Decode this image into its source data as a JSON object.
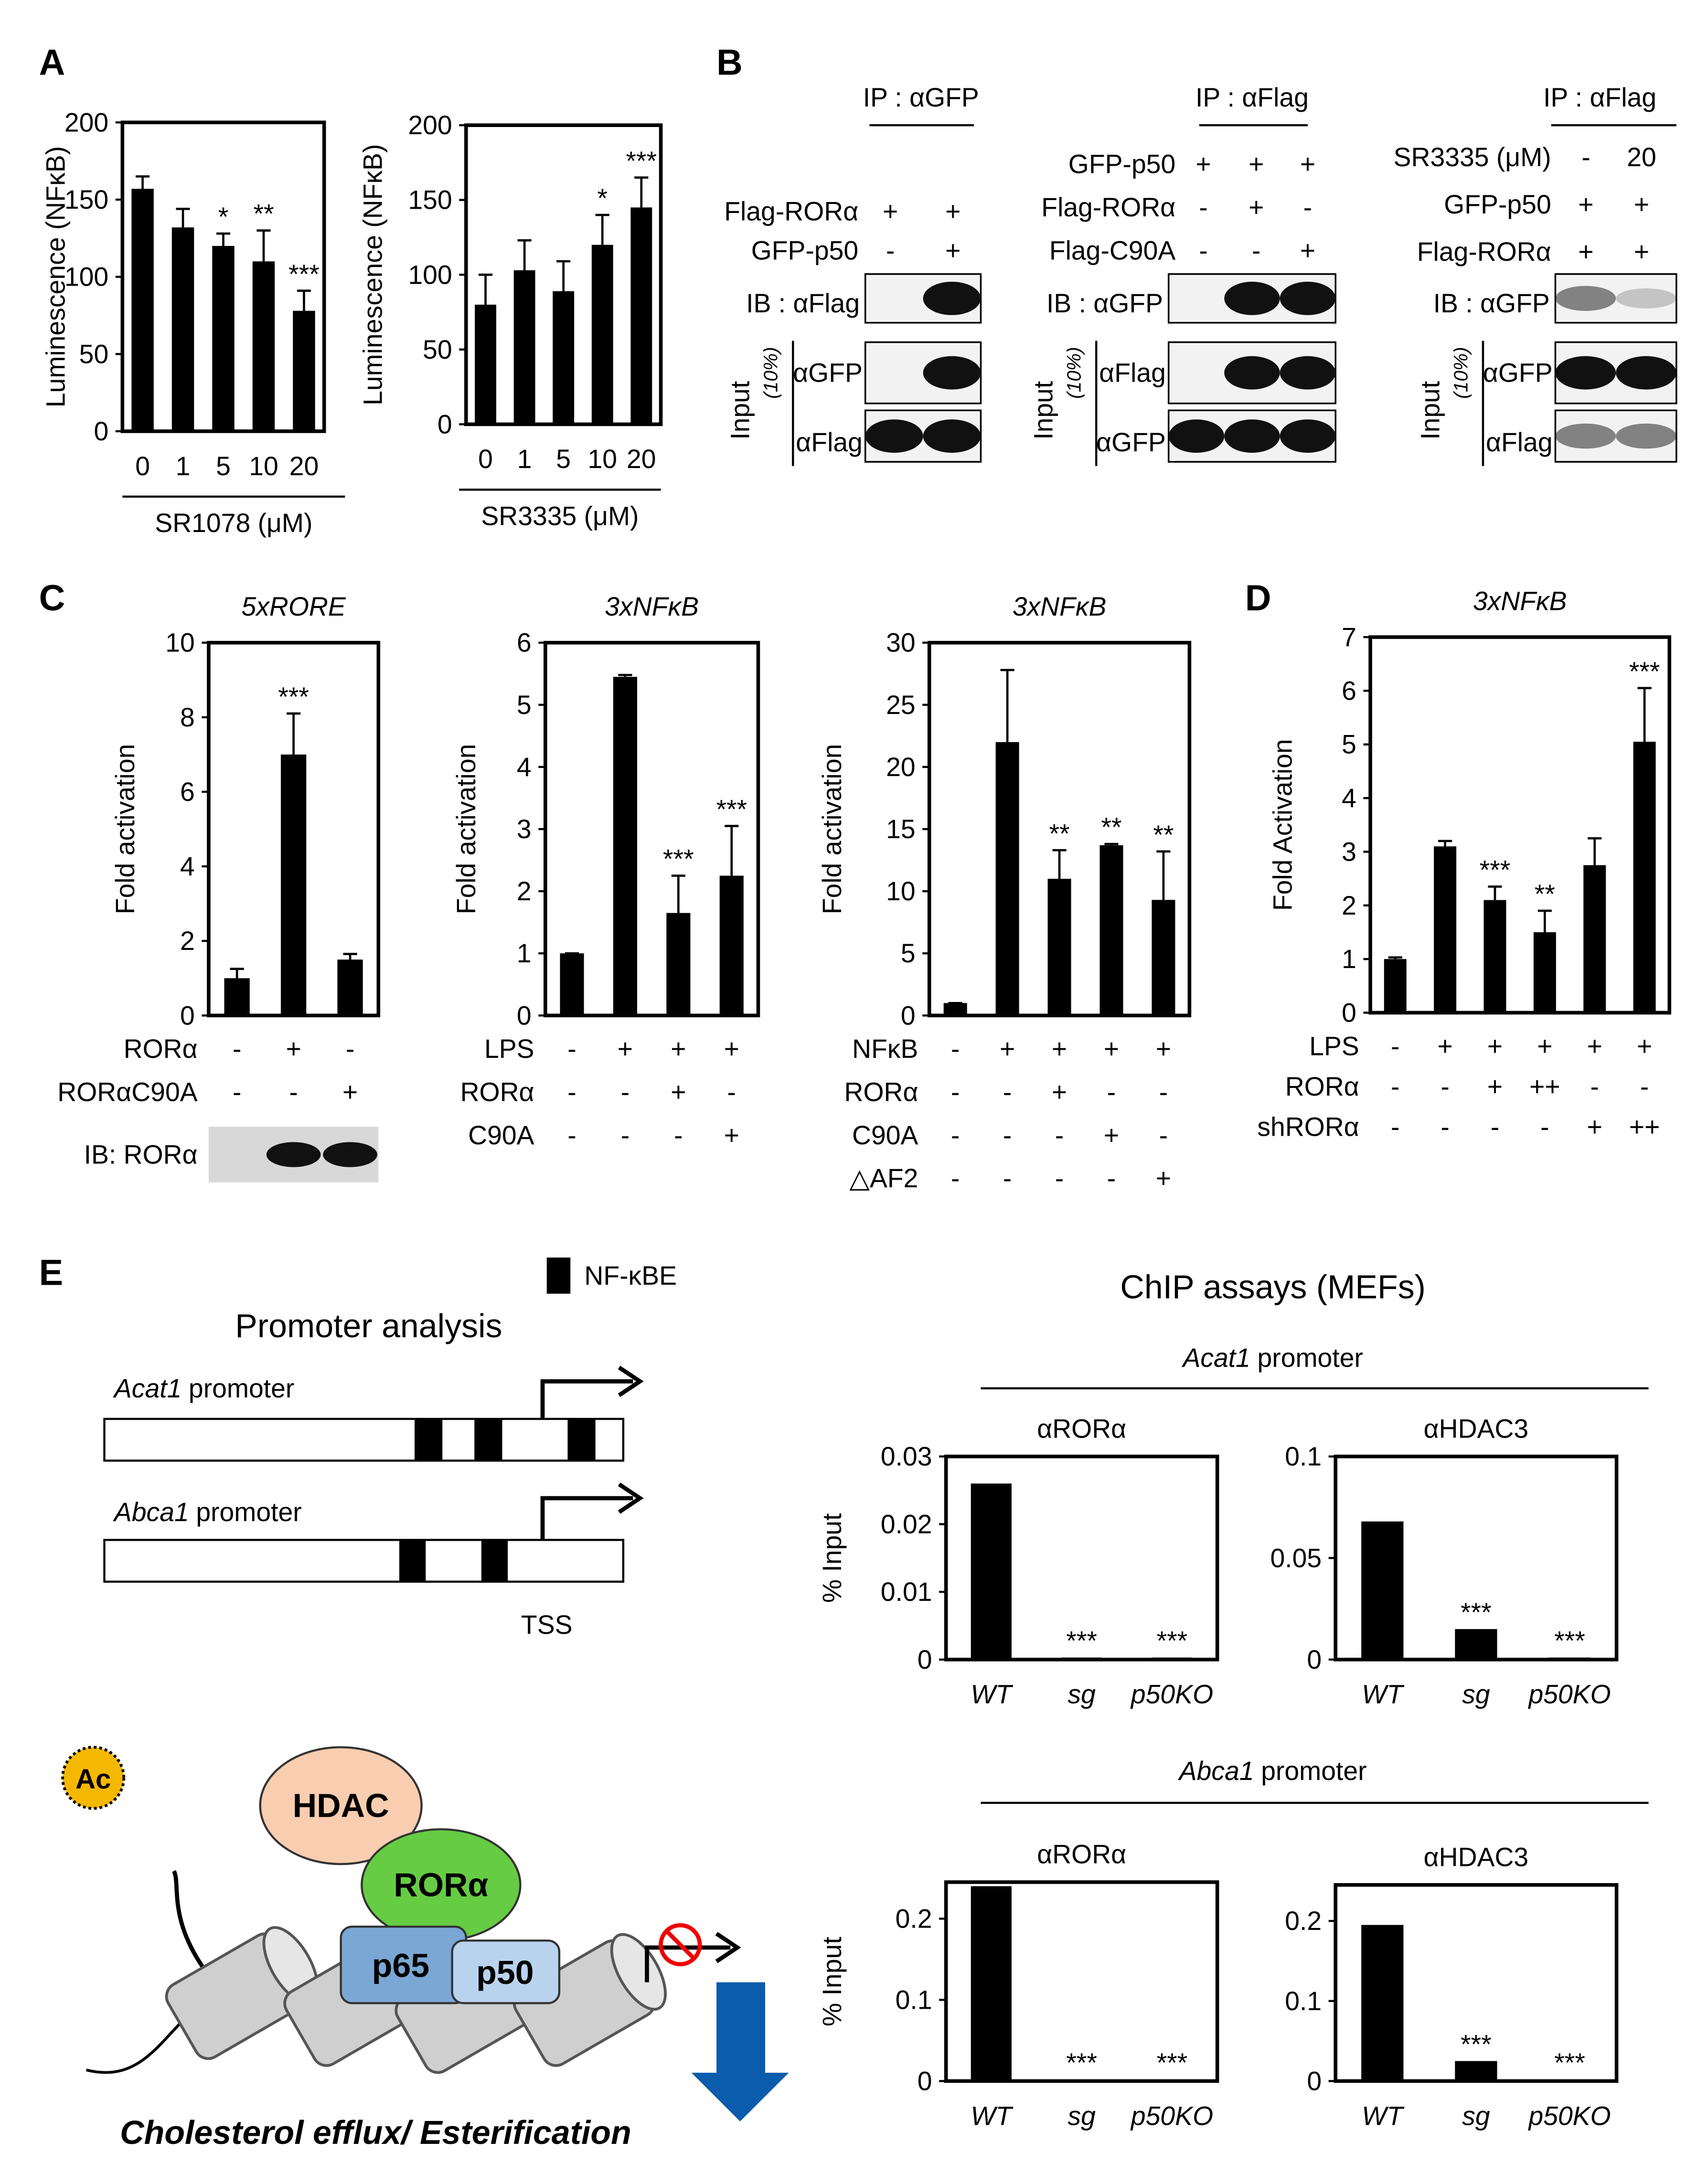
{
  "panel_labels": [
    "A",
    "B",
    "C",
    "D",
    "E"
  ],
  "chart_data": [
    {
      "type": "bar",
      "y_label": "Luminescence (NFκB)",
      "x_label": "SR1078 (μM)",
      "categories": [
        "0",
        "1",
        "5",
        "10",
        "20"
      ],
      "values": [
        157,
        132,
        120,
        110,
        78
      ],
      "errors": [
        8,
        12,
        8,
        20,
        13
      ],
      "significance": [
        null,
        null,
        "*",
        "**",
        "***"
      ],
      "ylim": [
        0,
        200
      ],
      "yticks": [
        0,
        50,
        100,
        150,
        200
      ],
      "color": "#000000"
    },
    {
      "type": "bar",
      "y_label": "Luminescence (NFκB)",
      "x_label": "SR3335 (μM)",
      "categories": [
        "0",
        "1",
        "5",
        "10",
        "20"
      ],
      "values": [
        80,
        103,
        89,
        120,
        145
      ],
      "errors": [
        20,
        20,
        20,
        20,
        20
      ],
      "significance": [
        null,
        null,
        null,
        "*",
        "***"
      ],
      "ylim": [
        0,
        200
      ],
      "yticks": [
        0,
        50,
        100,
        150,
        200
      ],
      "color": "#000000"
    },
    {
      "type": "bar",
      "title": "5xRORE",
      "y_label": "Fold activation",
      "values": [
        1,
        7,
        1.5
      ],
      "errors": [
        0.25,
        1.1,
        0.15
      ],
      "significance": [
        null,
        "***",
        null
      ],
      "ylim": [
        0,
        10
      ],
      "yticks": [
        0,
        2,
        4,
        6,
        8,
        10
      ],
      "color": "#000000",
      "conditions": [
        {
          "name": "RORα",
          "marks": [
            "-",
            "+",
            "-"
          ]
        },
        {
          "name": "RORαC90A",
          "marks": [
            "-",
            "-",
            "+"
          ]
        }
      ],
      "blot_label": "IB: RORα"
    },
    {
      "type": "bar",
      "title": "3xNFκB",
      "y_label": "Fold activation",
      "values": [
        1,
        5.45,
        1.65,
        2.25
      ],
      "errors": [
        0,
        0.03,
        0.6,
        0.8
      ],
      "significance": [
        null,
        null,
        "***",
        "***"
      ],
      "ylim": [
        0,
        6
      ],
      "yticks": [
        0,
        1,
        2,
        3,
        4,
        5,
        6
      ],
      "color": "#000000",
      "conditions": [
        {
          "name": "LPS",
          "marks": [
            "-",
            "+",
            "+",
            "+"
          ]
        },
        {
          "name": "RORα",
          "marks": [
            "-",
            "-",
            "+",
            "-"
          ]
        },
        {
          "name": "C90A",
          "marks": [
            "-",
            "-",
            "-",
            "+"
          ]
        }
      ]
    },
    {
      "type": "bar",
      "title": "3xNFκB",
      "y_label": "Fold activation",
      "values": [
        1,
        22,
        11,
        13.7,
        9.3
      ],
      "errors": [
        0,
        5.8,
        2.3,
        0.1,
        3.9
      ],
      "significance": [
        null,
        null,
        "**",
        "**",
        "**"
      ],
      "ylim": [
        0,
        30
      ],
      "yticks": [
        0,
        5,
        10,
        15,
        20,
        25,
        30
      ],
      "color": "#000000",
      "conditions": [
        {
          "name": "NFκB",
          "marks": [
            "-",
            "+",
            "+",
            "+",
            "+"
          ]
        },
        {
          "name": "RORα",
          "marks": [
            "-",
            "-",
            "+",
            "-",
            "-"
          ]
        },
        {
          "name": "C90A",
          "marks": [
            "-",
            "-",
            "-",
            "+",
            "-"
          ]
        },
        {
          "name": "△AF2",
          "marks": [
            "-",
            "-",
            "-",
            "-",
            "+"
          ]
        }
      ]
    },
    {
      "type": "bar",
      "title": "3xNFκB",
      "y_label": "Fold Activation",
      "values": [
        1,
        3.1,
        2.1,
        1.5,
        2.75,
        5.05
      ],
      "errors": [
        0.03,
        0.1,
        0.25,
        0.4,
        0.5,
        1.0
      ],
      "significance": [
        null,
        null,
        "***",
        "**",
        null,
        "***"
      ],
      "ylim": [
        0,
        7
      ],
      "yticks": [
        0,
        1,
        2,
        3,
        4,
        5,
        6,
        7
      ],
      "color": "#000000",
      "conditions": [
        {
          "name": "LPS",
          "marks": [
            "-",
            "+",
            "+",
            "+",
            "+",
            "+"
          ]
        },
        {
          "name": "RORα",
          "marks": [
            "-",
            "-",
            "+",
            "++",
            "-",
            "-"
          ]
        },
        {
          "name": "shRORα",
          "marks": [
            "-",
            "-",
            "-",
            "-",
            "+",
            "++"
          ]
        }
      ]
    },
    {
      "type": "bar",
      "group": "αRORα",
      "y_label": "% Input",
      "categories": [
        "WT",
        "sg",
        "p50KO"
      ],
      "values": [
        0.026,
        0.0003,
        0.0003
      ],
      "significance": [
        null,
        "***",
        "***"
      ],
      "ylim": [
        0,
        0.03
      ],
      "yticks": [
        0,
        0.01,
        0.02,
        0.03
      ],
      "color": "#000000"
    },
    {
      "type": "bar",
      "group": "αHDAC3",
      "categories": [
        "WT",
        "sg",
        "p50KO"
      ],
      "values": [
        0.068,
        0.015,
        0.001
      ],
      "significance": [
        null,
        "***",
        "***"
      ],
      "ylim": [
        0,
        0.1
      ],
      "yticks": [
        0,
        0.05,
        0.1
      ],
      "color": "#000000"
    },
    {
      "type": "bar",
      "group": "αRORα",
      "y_label": "% Input",
      "categories": [
        "WT",
        "sg",
        "p50KO"
      ],
      "values": [
        0.24,
        0.002,
        0.002
      ],
      "significance": [
        null,
        "***",
        "***"
      ],
      "ylim": [
        0,
        0.245
      ],
      "yticks": [
        0,
        0.1,
        0.2
      ],
      "color": "#000000"
    },
    {
      "type": "bar",
      "group": "αHDAC3",
      "categories": [
        "WT",
        "sg",
        "p50KO"
      ],
      "values": [
        0.195,
        0.025,
        0.002
      ],
      "significance": [
        null,
        "***",
        "***"
      ],
      "ylim": [
        0,
        0.245
      ],
      "yticks": [
        0,
        0.1,
        0.2
      ],
      "color": "#000000"
    }
  ],
  "blots": [
    {
      "ip": "IP : αGFP",
      "conditions": [
        {
          "name": "Flag-RORα",
          "marks": [
            "+",
            "+"
          ]
        },
        {
          "name": "GFP-p50",
          "marks": [
            "-",
            "+"
          ]
        }
      ],
      "ib": "IB : αFlag",
      "input": "Input",
      "input_fraction": "(10%)",
      "input_blots": [
        "αGFP",
        "αFlag"
      ]
    },
    {
      "ip": "IP : αFlag",
      "conditions": [
        {
          "name": "GFP-p50",
          "marks": [
            "+",
            "+",
            "+"
          ]
        },
        {
          "name": "Flag-RORα",
          "marks": [
            "-",
            "+",
            "-"
          ]
        },
        {
          "name": "Flag-C90A",
          "marks": [
            "-",
            "-",
            "+"
          ]
        }
      ],
      "ib": "IB : αGFP",
      "input": "Input",
      "input_fraction": "(10%)",
      "input_blots": [
        "αFlag",
        "αGFP"
      ]
    },
    {
      "ip": "IP : αFlag",
      "conditions": [
        {
          "name": "SR3335 (μM)",
          "marks": [
            "-",
            "20"
          ]
        },
        {
          "name": "GFP-p50",
          "marks": [
            "+",
            "+"
          ]
        },
        {
          "name": "Flag-RORα",
          "marks": [
            "+",
            "+"
          ]
        }
      ],
      "ib": "IB : αGFP",
      "input": "Input",
      "input_fraction": "(10%)",
      "input_blots": [
        "αGFP",
        "αFlag"
      ]
    }
  ],
  "promoter_analysis": {
    "title": "Promoter analysis",
    "legend": "NF-κBE",
    "promoters": [
      {
        "gene": "Acat1",
        "suffix": "promoter"
      },
      {
        "gene": "Abca1",
        "suffix": "promoter"
      }
    ],
    "tss": "TSS"
  },
  "chip": {
    "title": "ChIP assays (MEFs)",
    "promoters": [
      {
        "gene": "Acat1",
        "suffix": "promoter"
      },
      {
        "gene": "Abca1",
        "suffix": "promoter"
      }
    ]
  },
  "model": {
    "acetyl": "Ac",
    "hdac": "HDAC",
    "ror": "RORα",
    "p65": "p65",
    "p50": "p50",
    "outcome": "Cholesterol efflux/ Esterification"
  }
}
